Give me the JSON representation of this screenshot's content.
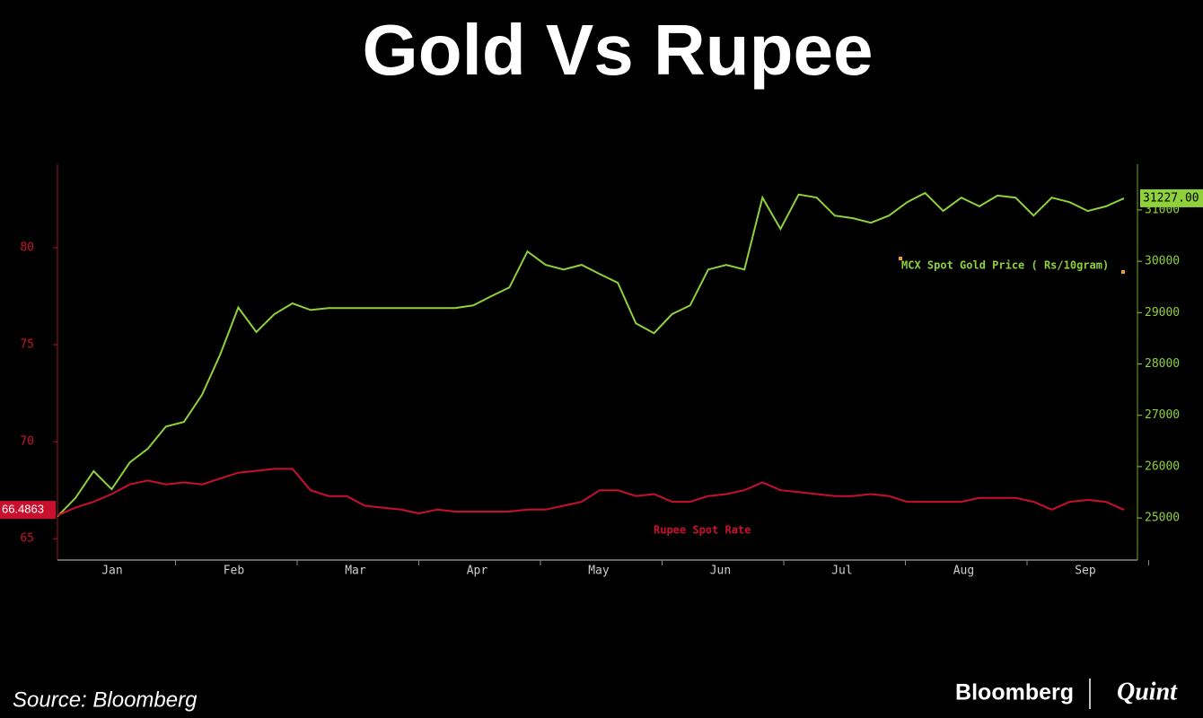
{
  "chart_data": {
    "type": "line",
    "title": "Gold Vs Rupee",
    "source": "Source: Bloomberg",
    "brand": "Bloomberg",
    "brand2": "Quint",
    "months": [
      "Jan",
      "Feb",
      "Mar",
      "Apr",
      "May",
      "Jun",
      "Jul",
      "Aug",
      "Sep"
    ],
    "ylim": [
      63.9,
      84.3
    ],
    "yticks": [
      65,
      70,
      75,
      80
    ],
    "y2lim": [
      24180,
      31890
    ],
    "y2ticks": [
      25000,
      26000,
      27000,
      28000,
      29000,
      30000,
      31000
    ],
    "series": [
      {
        "name": "MCX Spot Gold Price ( Rs/10gram)",
        "color": "#8fd13a",
        "axis": "y2",
        "last_label": "31227.00",
        "values": [
          25030,
          25390,
          25910,
          25560,
          26080,
          26350,
          26780,
          26870,
          27400,
          28180,
          29100,
          28620,
          28970,
          29180,
          29050,
          29090,
          29090,
          29090,
          29090,
          29090,
          29090,
          29090,
          29090,
          29140,
          29320,
          29490,
          30190,
          29930,
          29840,
          29930,
          29750,
          29580,
          28790,
          28600,
          28970,
          29140,
          29840,
          29930,
          29840,
          31240,
          30630,
          31300,
          31240,
          30890,
          30840,
          30750,
          30890,
          31150,
          31330,
          30980,
          31240,
          31070,
          31280,
          31240,
          30890,
          31240,
          31150,
          30980,
          31070,
          31227
        ]
      },
      {
        "name": "Rupee Spot Rate",
        "color": "#c8102e",
        "axis": "y",
        "values": [
          66.2,
          66.6,
          66.9,
          67.3,
          67.8,
          68.0,
          67.8,
          67.9,
          67.8,
          68.1,
          68.4,
          68.5,
          68.6,
          68.6,
          67.5,
          67.2,
          67.2,
          66.7,
          66.6,
          66.5,
          66.3,
          66.5,
          66.4,
          66.4,
          66.4,
          66.4,
          66.5,
          66.5,
          66.7,
          66.9,
          67.5,
          67.5,
          67.2,
          67.3,
          66.9,
          66.9,
          67.2,
          67.3,
          67.5,
          67.9,
          67.5,
          67.4,
          67.3,
          67.2,
          67.2,
          67.3,
          67.2,
          66.9,
          66.9,
          66.9,
          66.9,
          67.1,
          67.1,
          67.1,
          66.9,
          66.5,
          66.9,
          67.0,
          66.9,
          66.4863
        ]
      }
    ]
  }
}
